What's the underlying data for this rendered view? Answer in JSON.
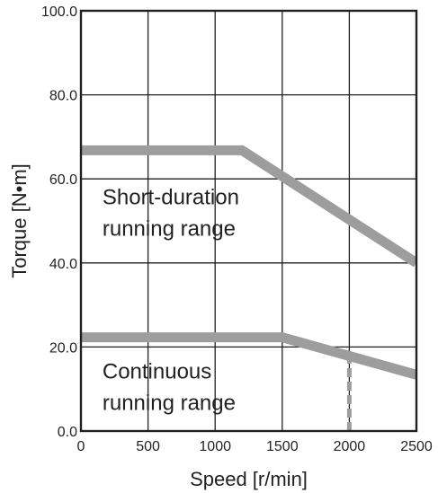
{
  "chart_data": {
    "type": "line",
    "xlabel": "Speed [r/min]",
    "ylabel": "Torque [N•m]",
    "xlim": [
      0,
      2500
    ],
    "ylim": [
      0,
      100
    ],
    "x_ticks": [
      0,
      500,
      1000,
      1500,
      2000,
      2500
    ],
    "x_tick_labels": [
      "0",
      "500",
      "1000",
      "1500",
      "2000",
      "2500"
    ],
    "y_ticks": [
      0,
      20,
      40,
      60,
      80,
      100
    ],
    "y_tick_labels": [
      "0.0",
      "20.0",
      "40.0",
      "60.0",
      "80.0",
      "100.0"
    ],
    "grid": true,
    "series": [
      {
        "color": "#9d9d9d",
        "x": [
          0,
          1200,
          2500
        ],
        "y": [
          66.8,
          66.8,
          40
        ]
      },
      {
        "color": "#9d9d9d",
        "x": [
          0,
          1500,
          2500
        ],
        "y": [
          22.3,
          22.3,
          13.4
        ]
      }
    ],
    "reference_line": {
      "style": "dashed",
      "color": "#9d9d9d",
      "x": 2000,
      "y_from": 0,
      "y_to": 17.8
    },
    "annotations": [
      {
        "lines": [
          "Short-duration",
          "running range"
        ],
        "x": 160,
        "y": 54
      },
      {
        "lines": [
          "Continuous",
          "running range"
        ],
        "x": 160,
        "y": 12.5
      }
    ]
  }
}
